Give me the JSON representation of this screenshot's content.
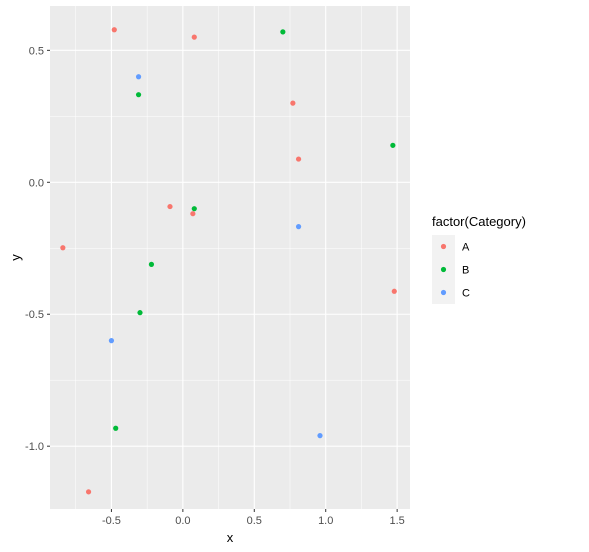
{
  "chart_data": {
    "type": "scatter",
    "title": "",
    "xlabel": "x",
    "ylabel": "y",
    "xlim": [
      -0.93,
      1.59
    ],
    "ylim": [
      -1.238,
      0.668
    ],
    "x_ticks": [
      {
        "value": -0.5,
        "label": "-0.5"
      },
      {
        "value": 0.0,
        "label": "0.0"
      },
      {
        "value": 0.5,
        "label": "0.5"
      },
      {
        "value": 1.0,
        "label": "1.0"
      },
      {
        "value": 1.5,
        "label": "1.5"
      }
    ],
    "y_ticks": [
      {
        "value": -1.0,
        "label": "-1.0"
      },
      {
        "value": -0.5,
        "label": "-0.5"
      },
      {
        "value": 0.0,
        "label": "0.0"
      },
      {
        "value": 0.5,
        "label": "0.5"
      }
    ],
    "grid": true,
    "panel_background": "#ebebeb",
    "legend": {
      "title": "factor(Category)",
      "position": "right"
    },
    "series": [
      {
        "name": "A",
        "color": "#F8766D",
        "points": [
          {
            "x": -0.48,
            "y": 0.578
          },
          {
            "x": 0.08,
            "y": 0.55
          },
          {
            "x": 0.77,
            "y": 0.3
          },
          {
            "x": 0.81,
            "y": 0.088
          },
          {
            "x": -0.09,
            "y": -0.092
          },
          {
            "x": 0.07,
            "y": -0.119
          },
          {
            "x": -0.84,
            "y": -0.248
          },
          {
            "x": 1.48,
            "y": -0.413
          },
          {
            "x": -0.66,
            "y": -1.173
          }
        ]
      },
      {
        "name": "B",
        "color": "#00BA38",
        "points": [
          {
            "x": 0.7,
            "y": 0.57
          },
          {
            "x": -0.31,
            "y": 0.332
          },
          {
            "x": 1.47,
            "y": 0.14
          },
          {
            "x": 0.08,
            "y": -0.1
          },
          {
            "x": -0.22,
            "y": -0.311
          },
          {
            "x": -0.3,
            "y": -0.494
          },
          {
            "x": -0.47,
            "y": -0.932
          }
        ]
      },
      {
        "name": "C",
        "color": "#619CFF",
        "points": [
          {
            "x": -0.31,
            "y": 0.4
          },
          {
            "x": 0.81,
            "y": -0.168
          },
          {
            "x": -0.5,
            "y": -0.6
          },
          {
            "x": 0.96,
            "y": -0.96
          }
        ]
      }
    ]
  }
}
